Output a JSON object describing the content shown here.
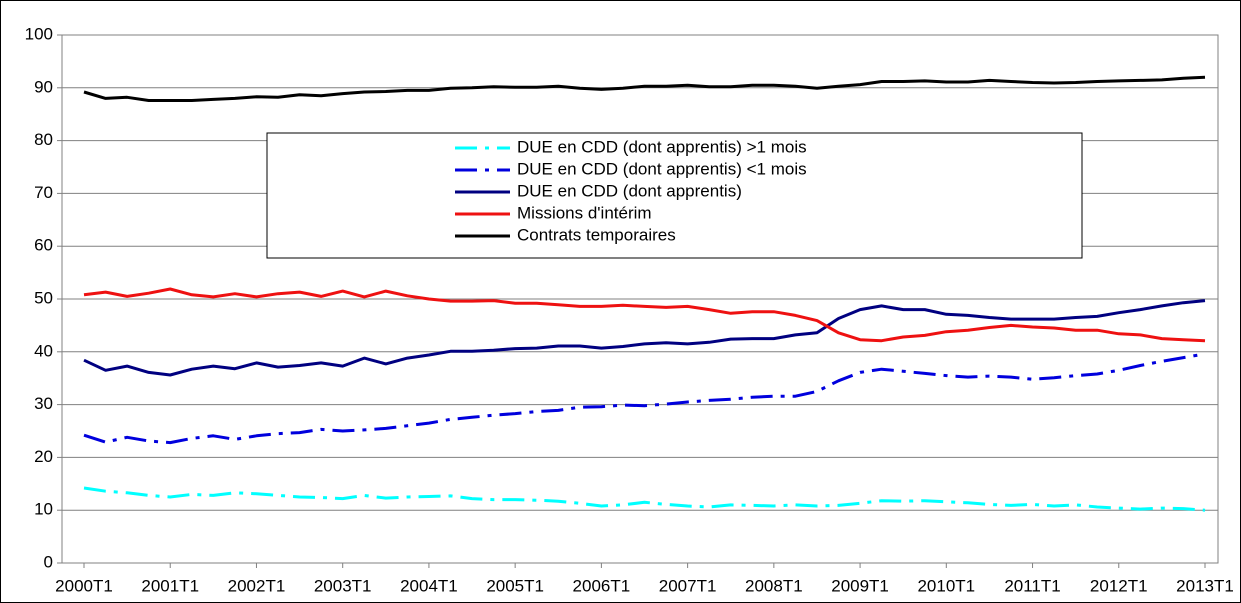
{
  "chart_data": {
    "type": "line",
    "categories": [
      "2000T1",
      null,
      null,
      null,
      "2001T1",
      null,
      null,
      null,
      "2002T1",
      null,
      null,
      null,
      "2003T1",
      null,
      null,
      null,
      "2004T1",
      null,
      null,
      null,
      "2005T1",
      null,
      null,
      null,
      "2006T1",
      null,
      null,
      null,
      "2007T1",
      null,
      null,
      null,
      "2008T1",
      null,
      null,
      null,
      "2009T1",
      null,
      null,
      null,
      "2010T1",
      null,
      null,
      null,
      "2011T1",
      null,
      null,
      null,
      "2012T1",
      null,
      null,
      null,
      "2013T1"
    ],
    "ylim": [
      0,
      100
    ],
    "yticks": [
      0,
      10,
      20,
      30,
      40,
      50,
      60,
      70,
      80,
      90,
      100
    ],
    "grid": true,
    "series": [
      {
        "name": "DUE en CDD (dont apprentis) >1 mois",
        "color": "#00ffff",
        "dash": "dashdot",
        "values": [
          14.2,
          13.6,
          13.3,
          12.8,
          12.5,
          13.0,
          12.8,
          13.3,
          13.1,
          12.8,
          12.5,
          12.4,
          12.2,
          12.8,
          12.3,
          12.5,
          12.6,
          12.7,
          12.2,
          12.0,
          12.0,
          11.9,
          11.7,
          11.3,
          10.8,
          11.0,
          11.5,
          11.1,
          10.8,
          10.6,
          11.0,
          10.9,
          10.8,
          11.0,
          10.8,
          10.9,
          11.3,
          11.8,
          11.7,
          11.8,
          11.6,
          11.4,
          11.1,
          10.9,
          11.1,
          10.8,
          11.0,
          10.6,
          10.4,
          10.2,
          10.4,
          10.3,
          10.0
        ]
      },
      {
        "name": "DUE en CDD (dont apprentis) <1 mois",
        "color": "#0000dd",
        "dash": "dashdot",
        "values": [
          24.2,
          22.9,
          23.8,
          23.1,
          22.8,
          23.6,
          24.1,
          23.4,
          24.1,
          24.5,
          24.7,
          25.3,
          25.0,
          25.2,
          25.5,
          26.0,
          26.5,
          27.2,
          27.6,
          28.0,
          28.3,
          28.7,
          28.9,
          29.5,
          29.6,
          29.9,
          29.8,
          30.1,
          30.5,
          30.8,
          31.0,
          31.4,
          31.6,
          31.6,
          32.5,
          34.5,
          36.1,
          36.7,
          36.3,
          35.9,
          35.5,
          35.2,
          35.4,
          35.2,
          34.8,
          35.1,
          35.5,
          35.8,
          36.5,
          37.4,
          38.2,
          38.9,
          39.6
        ]
      },
      {
        "name": "DUE en CDD (dont apprentis)",
        "color": "#000080",
        "dash": "solid",
        "values": [
          38.4,
          36.5,
          37.3,
          36.1,
          35.6,
          36.7,
          37.3,
          36.8,
          37.9,
          37.1,
          37.4,
          37.9,
          37.3,
          38.8,
          37.7,
          38.8,
          39.4,
          40.1,
          40.1,
          40.3,
          40.6,
          40.7,
          41.1,
          41.1,
          40.7,
          41.0,
          41.5,
          41.7,
          41.5,
          41.8,
          42.4,
          42.5,
          42.5,
          43.2,
          43.6,
          46.3,
          48.0,
          48.7,
          48.0,
          48.0,
          47.1,
          46.9,
          46.5,
          46.2,
          46.2,
          46.2,
          46.5,
          46.7,
          47.4,
          48.0,
          48.7,
          49.3,
          49.7
        ]
      },
      {
        "name": "Missions d'intérim",
        "color": "#ee1111",
        "dash": "solid",
        "values": [
          50.8,
          51.3,
          50.5,
          51.1,
          51.9,
          50.8,
          50.4,
          51.0,
          50.4,
          51.0,
          51.3,
          50.5,
          51.5,
          50.4,
          51.5,
          50.6,
          50.0,
          49.6,
          49.6,
          49.7,
          49.2,
          49.2,
          48.9,
          48.6,
          48.6,
          48.8,
          48.6,
          48.4,
          48.6,
          48.0,
          47.3,
          47.6,
          47.6,
          46.9,
          45.9,
          43.6,
          42.3,
          42.1,
          42.8,
          43.1,
          43.8,
          44.1,
          44.6,
          45.0,
          44.7,
          44.5,
          44.1,
          44.1,
          43.4,
          43.2,
          42.5,
          42.3,
          42.1
        ]
      },
      {
        "name": "Contrats temporaires",
        "color": "#000000",
        "dash": "solid",
        "values": [
          89.2,
          88.0,
          88.2,
          87.6,
          87.6,
          87.6,
          87.8,
          88.0,
          88.3,
          88.2,
          88.7,
          88.5,
          88.9,
          89.2,
          89.3,
          89.5,
          89.5,
          89.9,
          90.0,
          90.2,
          90.1,
          90.1,
          90.3,
          89.9,
          89.7,
          89.9,
          90.3,
          90.3,
          90.5,
          90.2,
          90.2,
          90.5,
          90.5,
          90.3,
          89.9,
          90.3,
          90.6,
          91.2,
          91.2,
          91.3,
          91.1,
          91.1,
          91.4,
          91.2,
          91.0,
          90.9,
          91.0,
          91.2,
          91.3,
          91.4,
          91.5,
          91.8,
          92.0
        ]
      }
    ]
  }
}
